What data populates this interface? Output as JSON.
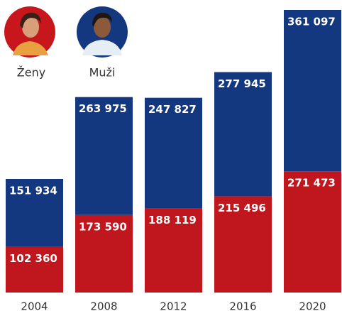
{
  "chart_data": {
    "type": "stacked_bar",
    "categories": [
      "2004",
      "2008",
      "2012",
      "2016",
      "2020"
    ],
    "series": [
      {
        "name": "Ženy",
        "color": "#c0161d",
        "values": [
          102360,
          173590,
          188119,
          215496,
          271473
        ],
        "value_labels": [
          "102 360",
          "173 590",
          "188 119",
          "215 496",
          "271 473"
        ]
      },
      {
        "name": "Muži",
        "color": "#14387f",
        "values": [
          151934,
          263975,
          247827,
          277945,
          361097
        ],
        "value_labels": [
          "151 934",
          "263 975",
          "247 827",
          "277 945",
          "361 097"
        ]
      }
    ]
  }
}
